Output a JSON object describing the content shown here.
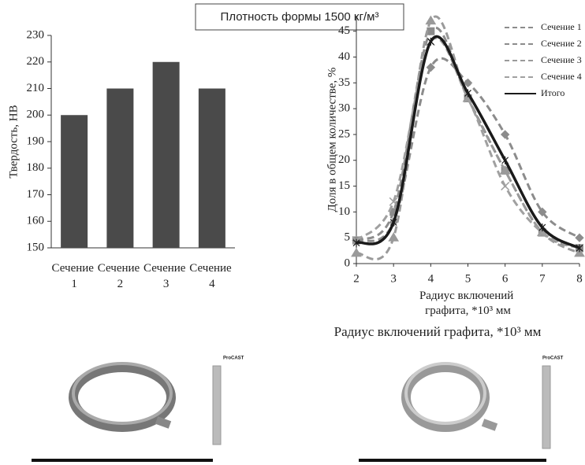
{
  "header": "Плотность формы 1500 кг/м³",
  "chart_data": [
    {
      "type": "bar",
      "categories": [
        "Сечение 1",
        "Сечение 2",
        "Сечение 3",
        "Сечение 4"
      ],
      "values": [
        200,
        210,
        220,
        210
      ],
      "color": "#4a4a4a",
      "ylabel": "Твердость, HB",
      "ylim": [
        150,
        230
      ],
      "yticks": [
        150,
        160,
        170,
        180,
        190,
        200,
        210,
        220,
        230
      ]
    },
    {
      "type": "line",
      "x": [
        2,
        3,
        4,
        5,
        6,
        7,
        8
      ],
      "xlabel": "Радиус включений графита, *10³ мм",
      "ylabel": "Доля в общем количестве, %",
      "xlim": [
        2,
        8
      ],
      "ylim": [
        0,
        48
      ],
      "xticks": [
        2,
        3,
        4,
        5,
        6,
        7,
        8
      ],
      "yticks": [
        0,
        5,
        10,
        15,
        20,
        25,
        30,
        35,
        40,
        45
      ],
      "legend": "upper right",
      "series": [
        {
          "name": "Сечение 1",
          "color": "#8c8c8c",
          "dash": true,
          "marker": "diamond",
          "values": [
            4.5,
            8,
            38,
            35,
            25,
            10,
            5
          ]
        },
        {
          "name": "Сечение 2",
          "color": "#8c8c8c",
          "dash": true,
          "marker": "square",
          "values": [
            4.5,
            10,
            45,
            32,
            18,
            6,
            3
          ]
        },
        {
          "name": "Сечение 3",
          "color": "#9a9a9a",
          "dash": true,
          "marker": "triangle",
          "values": [
            2,
            5,
            47,
            32,
            18,
            6,
            2
          ]
        },
        {
          "name": "Сечение 4",
          "color": "#a0a0a0",
          "dash": true,
          "marker": "x",
          "values": [
            4.5,
            12,
            43,
            32,
            15,
            6,
            3
          ]
        },
        {
          "name": "Итого",
          "color": "#1a1a1a",
          "dash": false,
          "marker": "star",
          "values": [
            4,
            8,
            43,
            33,
            20,
            7,
            3
          ]
        }
      ]
    }
  ],
  "caption": "Радиус включений графита, *10³ мм",
  "images": [
    {
      "label": "ProCAST"
    },
    {
      "label": "ProCAST"
    }
  ]
}
